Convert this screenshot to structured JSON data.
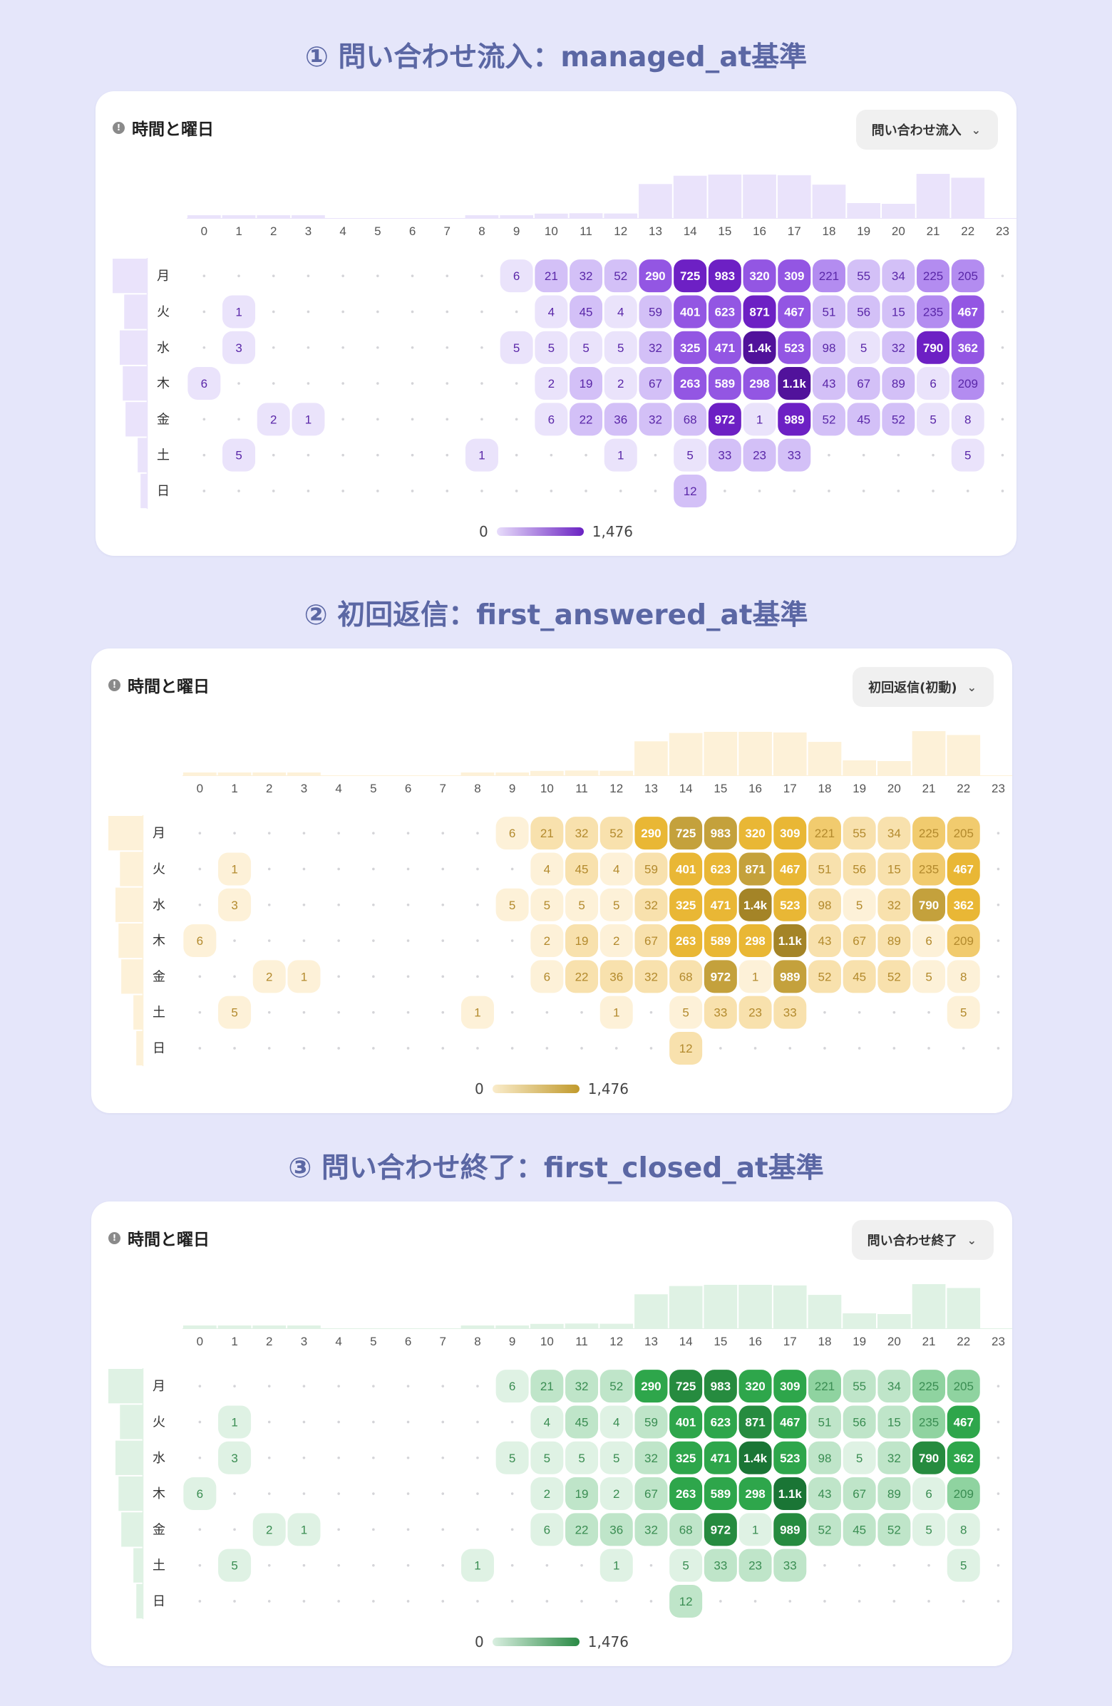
{
  "sections": [
    {
      "heading": "① 問い合わせ流入：managed_at基準",
      "card_title": "時間と曜日",
      "dropdown_label": "問い合わせ流入",
      "palette": [
        "#eae3fb",
        "#d3c0f7",
        "#b38cf0",
        "#9356e3",
        "#6d20c4",
        "#51129b"
      ],
      "text_dark": "#5a27a8",
      "text_light": "#ffffff",
      "legend": {
        "min": "0",
        "max": "1,476",
        "gradient": [
          "#e8ddfb",
          "#6a22c2"
        ]
      }
    },
    {
      "heading": "② 初回返信：first_answered_at基準",
      "card_title": "時間と曜日",
      "dropdown_label": "初回返信(初動)",
      "palette": [
        "#fdf1d8",
        "#f8e1ad",
        "#f1cb6e",
        "#e9b735",
        "#c4a13c",
        "#a48427"
      ],
      "text_dark": "#b38a2d",
      "text_light": "#ffffff",
      "legend": {
        "min": "0",
        "max": "1,476",
        "gradient": [
          "#faeccb",
          "#c19a2c"
        ]
      }
    },
    {
      "heading": "③ 問い合わせ終了：first_closed_at基準",
      "card_title": "時間と曜日",
      "dropdown_label": "問い合わせ終了",
      "palette": [
        "#dff2e4",
        "#bfe5c9",
        "#8fd3a0",
        "#2ea64b",
        "#268b3f",
        "#1a7535"
      ],
      "text_dark": "#3a8d52",
      "text_light": "#ffffff",
      "legend": {
        "min": "0",
        "max": "1,476",
        "gradient": [
          "#d9efe0",
          "#2a8a45"
        ]
      }
    }
  ],
  "chart_data": {
    "type": "heatmap",
    "hours": [
      "0",
      "1",
      "2",
      "3",
      "4",
      "5",
      "6",
      "7",
      "8",
      "9",
      "10",
      "11",
      "12",
      "13",
      "14",
      "15",
      "16",
      "17",
      "18",
      "19",
      "20",
      "21",
      "22",
      "23"
    ],
    "days": [
      "月",
      "火",
      "水",
      "木",
      "金",
      "土",
      "日"
    ],
    "value_range": [
      0,
      1476
    ],
    "cells": [
      [
        null,
        null,
        null,
        null,
        null,
        null,
        null,
        null,
        null,
        "6",
        "21",
        "32",
        "52",
        "290",
        "725",
        "983",
        "320",
        "309",
        "221",
        "55",
        "34",
        "225",
        "205",
        null
      ],
      [
        null,
        "1",
        null,
        null,
        null,
        null,
        null,
        null,
        null,
        null,
        "4",
        "45",
        "4",
        "59",
        "401",
        "623",
        "871",
        "467",
        "51",
        "56",
        "15",
        "235",
        "467",
        null
      ],
      [
        null,
        "3",
        null,
        null,
        null,
        null,
        null,
        null,
        null,
        "5",
        "5",
        "5",
        "5",
        "32",
        "325",
        "471",
        "1.4k",
        "523",
        "98",
        "5",
        "32",
        "790",
        "362",
        null
      ],
      [
        "6",
        null,
        null,
        null,
        null,
        null,
        null,
        null,
        null,
        null,
        "2",
        "19",
        "2",
        "67",
        "263",
        "589",
        "298",
        "1.1k",
        "43",
        "67",
        "89",
        "6",
        "209",
        null
      ],
      [
        null,
        null,
        "2",
        "1",
        null,
        null,
        null,
        null,
        null,
        null,
        "6",
        "22",
        "36",
        "32",
        "68",
        "972",
        "1",
        "989",
        "52",
        "45",
        "52",
        "5",
        "8",
        null
      ],
      [
        null,
        "5",
        null,
        null,
        null,
        null,
        null,
        null,
        "1",
        null,
        null,
        null,
        "1",
        null,
        "5",
        "33",
        "23",
        "33",
        null,
        null,
        null,
        null,
        "5",
        null
      ],
      [
        null,
        null,
        null,
        null,
        null,
        null,
        null,
        null,
        null,
        null,
        null,
        null,
        null,
        null,
        "12",
        null,
        null,
        null,
        null,
        null,
        null,
        null,
        null,
        null
      ]
    ],
    "hour_totals": [
      6,
      9,
      2,
      1,
      0,
      0,
      0,
      0,
      1,
      11,
      38,
      41,
      39,
      291,
      362,
      372,
      372,
      367,
      286,
      128,
      122,
      378,
      345,
      0
    ],
    "day_totals": [
      1083,
      716,
      858,
      761,
      674,
      290,
      198
    ]
  }
}
